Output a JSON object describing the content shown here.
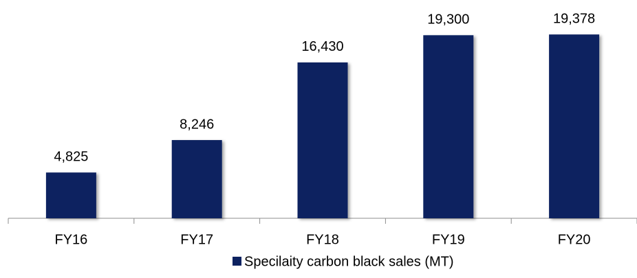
{
  "chart_data": {
    "type": "bar",
    "categories": [
      "FY16",
      "FY17",
      "FY18",
      "FY19",
      "FY20"
    ],
    "series": [
      {
        "name": "Specilaity carbon black sales (MT)",
        "color": "#0d2260",
        "values": [
          4825,
          8246,
          16430,
          19300,
          19378
        ],
        "value_labels": [
          "4,825",
          "8,246",
          "16,430",
          "19,300",
          "19,378"
        ]
      }
    ],
    "ylim": [
      0,
      22000
    ],
    "legend": "bottom"
  }
}
